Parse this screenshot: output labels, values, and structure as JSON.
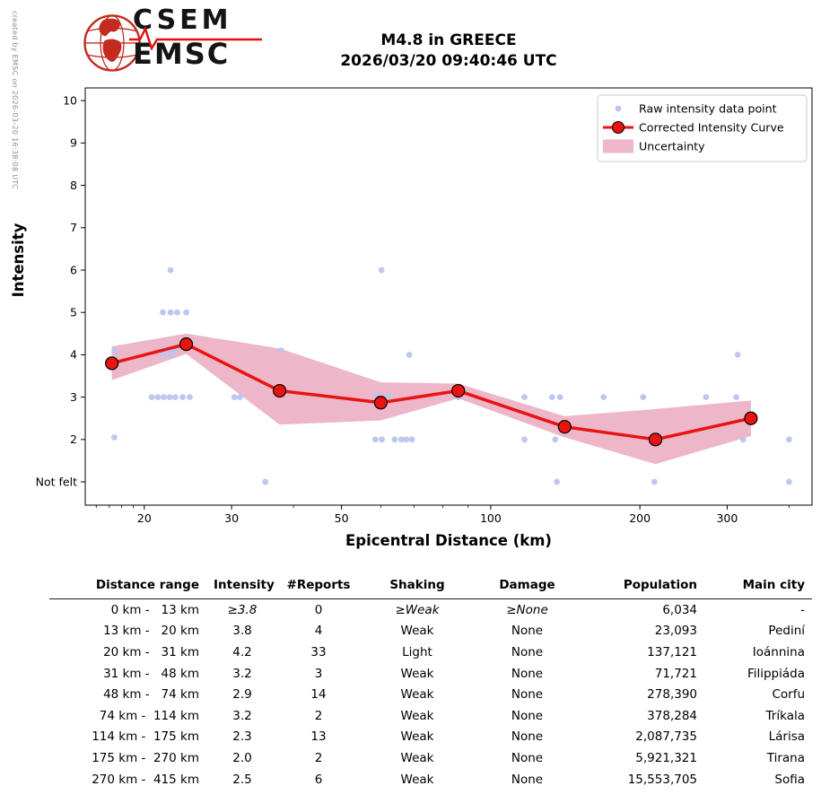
{
  "credit": "created by EMSC on 2026-03-20 16:38:08 UTC",
  "logo": {
    "top": "CSEM",
    "bottom": "EMSC"
  },
  "title": {
    "line1": "M4.8 in GREECE",
    "line2": "2026/03/20 09:40:46 UTC"
  },
  "chart_data": {
    "type": "line",
    "title": "",
    "xlabel": "Epicentral Distance (km)",
    "ylabel": "Intensity",
    "x_scale": "log",
    "x_range": [
      15.2,
      445
    ],
    "y_range": [
      0.45,
      10.3
    ],
    "x_ticks": [
      20,
      30,
      50,
      100,
      200,
      300
    ],
    "x_minor_ticks": [
      16,
      17,
      18,
      19,
      40,
      60,
      70,
      80,
      90,
      400
    ],
    "y_ticks": [
      {
        "v": 1,
        "label": "Not felt"
      },
      {
        "v": 2,
        "label": "2"
      },
      {
        "v": 3,
        "label": "3"
      },
      {
        "v": 4,
        "label": "4"
      },
      {
        "v": 5,
        "label": "5"
      },
      {
        "v": 6,
        "label": "6"
      },
      {
        "v": 7,
        "label": "7"
      },
      {
        "v": 8,
        "label": "8"
      },
      {
        "v": 9,
        "label": "9"
      },
      {
        "v": 10,
        "label": "10"
      }
    ],
    "grid": false,
    "legend_position": "upper right",
    "legend": [
      {
        "label": "Raw intensity data point",
        "type": "dot"
      },
      {
        "label": "Corrected Intensity Curve",
        "type": "line-marker"
      },
      {
        "label": "Uncertainty",
        "type": "band"
      }
    ],
    "colors": {
      "raw": "#b9c5ee",
      "curve": "#e81412",
      "marker_edge": "#000000",
      "band": "#db7093",
      "band_opacity": 0.5
    },
    "raw_points": [
      [
        17.4,
        4.1
      ],
      [
        17.4,
        2.05
      ],
      [
        22.6,
        6
      ],
      [
        21.8,
        5
      ],
      [
        22.6,
        5
      ],
      [
        23.3,
        5
      ],
      [
        24.3,
        5
      ],
      [
        21.8,
        4.12
      ],
      [
        22.4,
        4.12
      ],
      [
        23.0,
        4.12
      ],
      [
        21.9,
        3.98
      ],
      [
        22.7,
        3.98
      ],
      [
        20.7,
        3
      ],
      [
        21.3,
        3
      ],
      [
        21.9,
        3
      ],
      [
        22.5,
        3
      ],
      [
        23.1,
        3
      ],
      [
        23.9,
        3
      ],
      [
        24.7,
        3
      ],
      [
        30.4,
        3
      ],
      [
        31.2,
        3
      ],
      [
        35.1,
        1
      ],
      [
        37.8,
        4.1
      ],
      [
        60.2,
        6
      ],
      [
        58.8,
        3.05
      ],
      [
        62.2,
        3.05
      ],
      [
        58.5,
        2
      ],
      [
        60.3,
        2
      ],
      [
        64,
        2
      ],
      [
        66,
        2
      ],
      [
        67.5,
        2
      ],
      [
        69.3,
        2
      ],
      [
        68.5,
        4
      ],
      [
        86,
        3
      ],
      [
        117,
        3
      ],
      [
        117,
        2
      ],
      [
        133,
        3
      ],
      [
        138,
        3
      ],
      [
        135,
        2
      ],
      [
        136,
        1
      ],
      [
        169,
        3
      ],
      [
        203,
        3
      ],
      [
        214,
        1
      ],
      [
        272,
        3
      ],
      [
        315,
        4
      ],
      [
        313,
        3
      ],
      [
        323,
        2
      ],
      [
        400,
        2
      ],
      [
        400,
        1
      ]
    ],
    "corrected_curve": {
      "x": [
        17.2,
        24.3,
        37.5,
        60,
        86,
        141,
        215,
        335
      ],
      "y": [
        3.8,
        4.25,
        3.15,
        2.87,
        3.15,
        2.3,
        2.0,
        2.5
      ]
    },
    "uncertainty_band": {
      "x": [
        17.2,
        24.3,
        37.5,
        60,
        86,
        141,
        215,
        335
      ],
      "upper": [
        4.2,
        4.5,
        4.15,
        3.35,
        3.32,
        2.55,
        2.72,
        2.92
      ],
      "lower": [
        3.4,
        4.02,
        2.35,
        2.45,
        2.97,
        2.05,
        1.42,
        2.08
      ]
    }
  },
  "table": {
    "headers": [
      "Distance range",
      "Intensity",
      "#Reports",
      "Shaking",
      "Damage",
      "Population",
      "Main city"
    ],
    "rows": [
      {
        "predicted": true,
        "cells": [
          "0 km -   13 km",
          "≥3.8",
          "0",
          "≥Weak",
          "≥None",
          "6,034",
          "-"
        ]
      },
      {
        "predicted": false,
        "cells": [
          "13 km -   20 km",
          "3.8",
          "4",
          "Weak",
          "None",
          "23,093",
          "Pediní"
        ]
      },
      {
        "predicted": false,
        "cells": [
          "20 km -   31 km",
          "4.2",
          "33",
          "Light",
          "None",
          "137,121",
          "Ioánnina"
        ]
      },
      {
        "predicted": false,
        "cells": [
          "31 km -   48 km",
          "3.2",
          "3",
          "Weak",
          "None",
          "71,721",
          "Filippiáda"
        ]
      },
      {
        "predicted": false,
        "cells": [
          "48 km -   74 km",
          "2.9",
          "14",
          "Weak",
          "None",
          "278,390",
          "Corfu"
        ]
      },
      {
        "predicted": false,
        "cells": [
          "74 km -  114 km",
          "3.2",
          "2",
          "Weak",
          "None",
          "378,284",
          "Tríkala"
        ]
      },
      {
        "predicted": false,
        "cells": [
          "114 km -  175 km",
          "2.3",
          "13",
          "Weak",
          "None",
          "2,087,735",
          "Lárisa"
        ]
      },
      {
        "predicted": false,
        "cells": [
          "175 km -  270 km",
          "2.0",
          "2",
          "Weak",
          "None",
          "5,921,321",
          "Tirana"
        ]
      },
      {
        "predicted": false,
        "cells": [
          "270 km -  415 km",
          "2.5",
          "6",
          "Weak",
          "None",
          "15,553,705",
          "Sofia"
        ]
      }
    ]
  }
}
